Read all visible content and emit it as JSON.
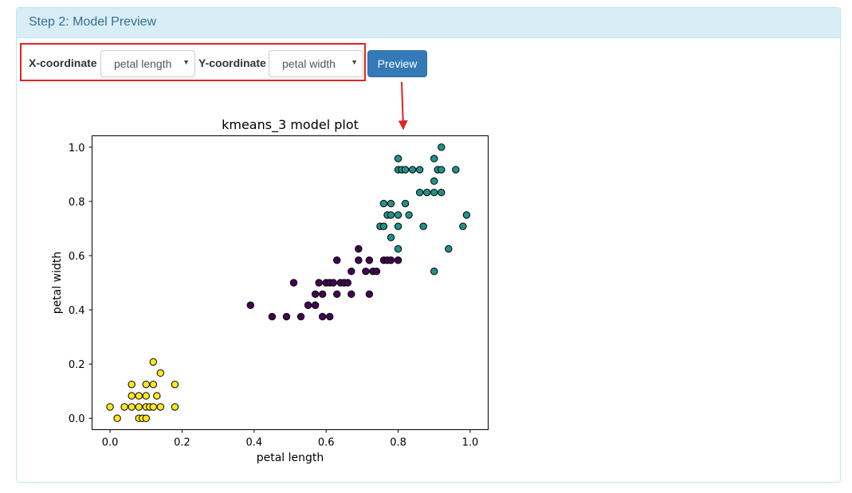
{
  "panel": {
    "heading": "Step 2: Model Preview"
  },
  "controls": {
    "x_label": "X-coordinate",
    "x_value": "petal length",
    "y_label": "Y-coordinate",
    "y_value": "petal width",
    "caret": "▼",
    "preview_label": "Preview"
  },
  "colors": {
    "highlight": "#e02424",
    "cluster_0": "#440154",
    "cluster_1": "#21918c",
    "cluster_2": "#fde725"
  },
  "chart_data": {
    "type": "scatter",
    "title": "kmeans_3 model plot",
    "xlabel": "petal length",
    "ylabel": "petal width",
    "xlim": [
      -0.05,
      1.05
    ],
    "ylim": [
      -0.042,
      1.042
    ],
    "x_ticks": [
      "0.0",
      "0.2",
      "0.4",
      "0.6",
      "0.8",
      "1.0"
    ],
    "y_ticks": [
      "0.0",
      "0.2",
      "0.4",
      "0.6",
      "0.8",
      "1.0"
    ],
    "grid": false,
    "series": [
      {
        "cluster": 0,
        "color": "#440154",
        "points": [
          [
            0.39,
            0.417
          ],
          [
            0.45,
            0.375
          ],
          [
            0.49,
            0.375
          ],
          [
            0.51,
            0.5
          ],
          [
            0.53,
            0.375
          ],
          [
            0.55,
            0.417
          ],
          [
            0.57,
            0.417
          ],
          [
            0.57,
            0.458
          ],
          [
            0.58,
            0.5
          ],
          [
            0.59,
            0.458
          ],
          [
            0.59,
            0.375
          ],
          [
            0.6,
            0.5
          ],
          [
            0.61,
            0.375
          ],
          [
            0.61,
            0.5
          ],
          [
            0.62,
            0.5
          ],
          [
            0.63,
            0.458
          ],
          [
            0.63,
            0.583
          ],
          [
            0.64,
            0.5
          ],
          [
            0.65,
            0.5
          ],
          [
            0.66,
            0.5
          ],
          [
            0.67,
            0.458
          ],
          [
            0.67,
            0.542
          ],
          [
            0.69,
            0.583
          ],
          [
            0.69,
            0.625
          ],
          [
            0.71,
            0.542
          ],
          [
            0.72,
            0.458
          ],
          [
            0.72,
            0.583
          ],
          [
            0.73,
            0.542
          ],
          [
            0.74,
            0.542
          ],
          [
            0.76,
            0.583
          ],
          [
            0.77,
            0.583
          ],
          [
            0.78,
            0.583
          ],
          [
            0.8,
            0.583
          ]
        ]
      },
      {
        "cluster": 1,
        "color": "#21918c",
        "points": [
          [
            0.75,
            0.708
          ],
          [
            0.76,
            0.708
          ],
          [
            0.76,
            0.792
          ],
          [
            0.77,
            0.75
          ],
          [
            0.78,
            0.667
          ],
          [
            0.78,
            0.75
          ],
          [
            0.78,
            0.792
          ],
          [
            0.8,
            0.625
          ],
          [
            0.8,
            0.708
          ],
          [
            0.8,
            0.75
          ],
          [
            0.8,
            0.917
          ],
          [
            0.8,
            0.958
          ],
          [
            0.81,
            0.917
          ],
          [
            0.82,
            0.792
          ],
          [
            0.82,
            0.917
          ],
          [
            0.83,
            0.75
          ],
          [
            0.84,
            0.917
          ],
          [
            0.86,
            0.833
          ],
          [
            0.86,
            0.917
          ],
          [
            0.87,
            0.708
          ],
          [
            0.88,
            0.833
          ],
          [
            0.9,
            0.833
          ],
          [
            0.9,
            0.875
          ],
          [
            0.9,
            0.958
          ],
          [
            0.9,
            0.542
          ],
          [
            0.91,
            0.917
          ],
          [
            0.92,
            0.833
          ],
          [
            0.92,
            0.917
          ],
          [
            0.92,
            1.0
          ],
          [
            0.94,
            0.625
          ],
          [
            0.96,
            0.917
          ],
          [
            0.98,
            0.708
          ],
          [
            0.99,
            0.75
          ]
        ]
      },
      {
        "cluster": 2,
        "color": "#fde725",
        "points": [
          [
            0.0,
            0.042
          ],
          [
            0.02,
            0.0
          ],
          [
            0.04,
            0.042
          ],
          [
            0.06,
            0.042
          ],
          [
            0.06,
            0.083
          ],
          [
            0.06,
            0.125
          ],
          [
            0.08,
            0.0
          ],
          [
            0.08,
            0.042
          ],
          [
            0.08,
            0.083
          ],
          [
            0.09,
            0.0
          ],
          [
            0.1,
            0.0
          ],
          [
            0.1,
            0.042
          ],
          [
            0.1,
            0.083
          ],
          [
            0.1,
            0.125
          ],
          [
            0.11,
            0.042
          ],
          [
            0.12,
            0.125
          ],
          [
            0.12,
            0.042
          ],
          [
            0.12,
            0.208
          ],
          [
            0.13,
            0.083
          ],
          [
            0.14,
            0.042
          ],
          [
            0.14,
            0.167
          ],
          [
            0.18,
            0.125
          ],
          [
            0.18,
            0.042
          ]
        ]
      }
    ]
  }
}
